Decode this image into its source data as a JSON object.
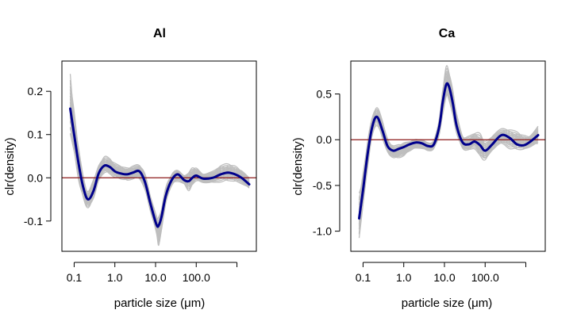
{
  "chart_data": [
    {
      "type": "line",
      "title": "Al",
      "xlabel": "particle size (μm)",
      "ylabel": "clr(density)",
      "x_scale": "log",
      "x_ticks": [
        0.1,
        1.0,
        10.0,
        100.0,
        1000.0
      ],
      "x_tick_labels": [
        "0.1",
        "1.0",
        "10.0",
        "100.0",
        ""
      ],
      "xlim": [
        0.05,
        3000
      ],
      "y_ticks": [
        -0.1,
        0.0,
        0.1,
        0.2
      ],
      "y_tick_labels": [
        "-0.1",
        "0.0",
        "0.1",
        "0.2"
      ],
      "ylim": [
        -0.17,
        0.27
      ],
      "reference_line": {
        "y": 0.0,
        "color": "#8b1a1a"
      },
      "series": [
        {
          "role": "mean",
          "color": "#00008b",
          "x": [
            0.08,
            0.1,
            0.13,
            0.17,
            0.22,
            0.3,
            0.4,
            0.55,
            0.75,
            1.0,
            1.4,
            2.0,
            2.8,
            4.0,
            5.5,
            7.5,
            10.5,
            12,
            14,
            18,
            25,
            35,
            50,
            65,
            80,
            100,
            150,
            250,
            400,
            600,
            900,
            1300,
            2000
          ],
          "y": [
            0.16,
            0.1,
            0.03,
            -0.025,
            -0.05,
            -0.03,
            0.01,
            0.028,
            0.025,
            0.015,
            0.01,
            0.008,
            0.012,
            0.015,
            -0.01,
            -0.06,
            -0.108,
            -0.11,
            -0.09,
            -0.04,
            -0.005,
            0.008,
            -0.005,
            -0.008,
            0.0,
            0.005,
            -0.002,
            0.0,
            0.008,
            0.012,
            0.008,
            0.0,
            -0.015
          ]
        }
      ],
      "bootstrap_band": {
        "color": "#bebebe",
        "upper": [
          0.25,
          0.16,
          0.07,
          0.0,
          -0.03,
          0.0,
          0.03,
          0.05,
          0.045,
          0.035,
          0.03,
          0.025,
          0.028,
          0.03,
          0.01,
          -0.04,
          -0.085,
          -0.09,
          -0.07,
          -0.02,
          0.01,
          0.02,
          0.005,
          0.015,
          0.025,
          0.025,
          0.01,
          0.015,
          0.03,
          0.035,
          0.03,
          0.018,
          0.0
        ],
        "lower": [
          0.09,
          0.05,
          -0.01,
          -0.05,
          -0.07,
          -0.05,
          -0.01,
          0.01,
          0.008,
          0.0,
          -0.005,
          -0.008,
          -0.004,
          -0.002,
          -0.03,
          -0.08,
          -0.13,
          -0.16,
          -0.12,
          -0.06,
          -0.02,
          -0.01,
          -0.015,
          -0.03,
          -0.02,
          -0.01,
          -0.012,
          -0.012,
          -0.01,
          -0.01,
          -0.012,
          -0.015,
          -0.025
        ]
      }
    },
    {
      "type": "line",
      "title": "Ca",
      "xlabel": "particle size (μm)",
      "ylabel": "clr(density)",
      "x_scale": "log",
      "x_ticks": [
        0.1,
        1.0,
        10.0,
        100.0,
        1000.0
      ],
      "x_tick_labels": [
        "0.1",
        "1.0",
        "10.0",
        "100.0",
        ""
      ],
      "xlim": [
        0.05,
        3000
      ],
      "y_ticks": [
        -1.0,
        -0.5,
        0.0,
        0.5
      ],
      "y_tick_labels": [
        "-1.0",
        "-0.5",
        "0.0",
        "0.5"
      ],
      "ylim": [
        -1.22,
        0.86
      ],
      "reference_line": {
        "y": 0.0,
        "color": "#8b1a1a"
      },
      "series": [
        {
          "role": "mean",
          "color": "#00008b",
          "x": [
            0.08,
            0.1,
            0.13,
            0.17,
            0.22,
            0.3,
            0.4,
            0.55,
            0.75,
            1.0,
            1.4,
            2.0,
            2.8,
            4.0,
            5.5,
            7.5,
            9,
            11,
            13,
            16,
            20,
            28,
            40,
            55,
            75,
            100,
            150,
            250,
            400,
            600,
            900,
            1300,
            2000
          ],
          "y": [
            -0.86,
            -0.55,
            -0.15,
            0.15,
            0.25,
            0.1,
            -0.07,
            -0.12,
            -0.1,
            -0.08,
            -0.05,
            -0.03,
            -0.04,
            -0.07,
            -0.05,
            0.15,
            0.4,
            0.6,
            0.58,
            0.4,
            0.15,
            -0.03,
            -0.05,
            -0.02,
            -0.06,
            -0.12,
            -0.05,
            0.05,
            0.02,
            -0.05,
            -0.06,
            -0.02,
            0.05
          ]
        }
      ],
      "bootstrap_band": {
        "color": "#bebebe",
        "upper": [
          -0.55,
          -0.35,
          0.0,
          0.25,
          0.36,
          0.22,
          0.02,
          -0.06,
          -0.05,
          -0.03,
          -0.01,
          0.01,
          0.0,
          -0.03,
          0.0,
          0.25,
          0.55,
          0.8,
          0.75,
          0.55,
          0.3,
          0.05,
          0.04,
          0.08,
          0.08,
          0.0,
          0.05,
          0.12,
          0.12,
          0.1,
          0.06,
          0.05,
          0.15
        ],
        "lower": [
          -1.12,
          -0.75,
          -0.3,
          0.05,
          0.15,
          0.0,
          -0.15,
          -0.2,
          -0.2,
          -0.18,
          -0.13,
          -0.1,
          -0.1,
          -0.12,
          -0.1,
          0.05,
          0.25,
          0.45,
          0.43,
          0.25,
          0.05,
          -0.1,
          -0.12,
          -0.1,
          -0.2,
          -0.24,
          -0.12,
          -0.05,
          -0.1,
          -0.12,
          -0.12,
          -0.08,
          -0.05
        ]
      }
    }
  ]
}
